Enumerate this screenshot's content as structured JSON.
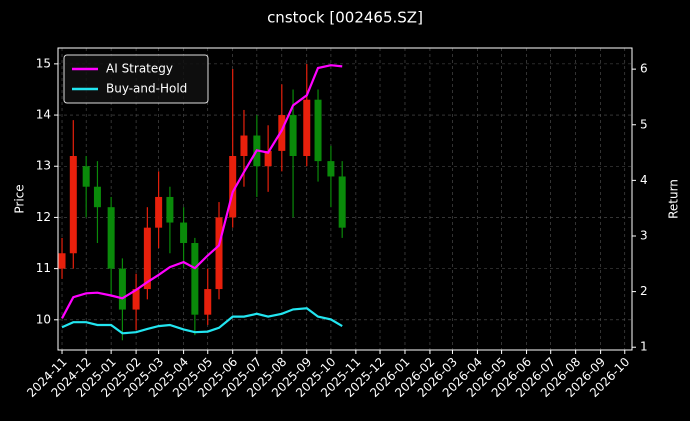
{
  "chart_data": {
    "type": "candlestick",
    "title": "cnstock [002465.SZ]",
    "ylabel": "Price",
    "y2label": "Return",
    "x": [
      "2024-11-01",
      "2024-11-15",
      "2024-12-01",
      "2024-12-15",
      "2025-01-01",
      "2025-01-15",
      "2025-02-01",
      "2025-02-15",
      "2025-03-01",
      "2025-03-15",
      "2025-04-01",
      "2025-04-15",
      "2025-05-01",
      "2025-05-15",
      "2025-06-01",
      "2025-06-15",
      "2025-07-01",
      "2025-07-15",
      "2025-08-01",
      "2025-08-15",
      "2025-09-01",
      "2025-09-15",
      "2025-10-01",
      "2025-10-15"
    ],
    "open": [
      11.0,
      11.3,
      13.0,
      12.6,
      12.2,
      11.0,
      10.2,
      10.6,
      11.8,
      12.4,
      11.9,
      11.5,
      10.1,
      10.6,
      12.0,
      13.2,
      13.6,
      13.0,
      13.3,
      14.0,
      13.2,
      14.3,
      13.1,
      12.8
    ],
    "high": [
      11.6,
      13.9,
      13.2,
      13.1,
      12.4,
      11.2,
      10.9,
      12.2,
      12.9,
      12.6,
      12.2,
      11.6,
      11.0,
      12.3,
      14.9,
      14.1,
      14.0,
      13.8,
      14.6,
      14.5,
      15.0,
      14.5,
      13.4,
      13.1
    ],
    "low": [
      10.8,
      11.0,
      12.0,
      11.5,
      10.5,
      9.6,
      9.8,
      10.4,
      11.4,
      11.3,
      11.0,
      9.7,
      9.9,
      10.4,
      11.8,
      12.6,
      12.4,
      12.5,
      12.9,
      12.0,
      13.0,
      12.7,
      12.2,
      11.6
    ],
    "close": [
      11.3,
      13.2,
      12.6,
      12.2,
      11.0,
      10.2,
      10.6,
      11.8,
      12.4,
      11.9,
      11.5,
      10.1,
      10.6,
      12.0,
      13.2,
      13.6,
      13.0,
      13.3,
      14.0,
      13.2,
      14.3,
      13.1,
      12.8,
      11.8
    ],
    "up_color": "#e8200c",
    "down_color": "#0a8a0a",
    "series": [
      {
        "name": "AI Strategy",
        "color": "#ff00ff",
        "axis": "y2",
        "values": [
          1.52,
          1.9,
          1.97,
          1.98,
          1.93,
          1.88,
          2.03,
          2.17,
          2.3,
          2.44,
          2.53,
          2.42,
          2.65,
          2.83,
          3.79,
          4.15,
          4.54,
          4.5,
          4.9,
          5.35,
          5.53,
          6.02,
          6.07,
          6.05
        ]
      },
      {
        "name": "Buy-and-Hold",
        "color": "#22e5f0",
        "axis": "y2",
        "values": [
          1.36,
          1.45,
          1.45,
          1.4,
          1.4,
          1.25,
          1.27,
          1.33,
          1.38,
          1.4,
          1.32,
          1.27,
          1.28,
          1.35,
          1.55,
          1.55,
          1.6,
          1.55,
          1.6,
          1.68,
          1.7,
          1.55,
          1.5,
          1.38
        ]
      }
    ],
    "xlim": [
      "2024-10-27",
      "2026-10-10"
    ],
    "xticks": [
      {
        "value": "2024-11-01",
        "label": "2024-11"
      },
      {
        "value": "2024-12-01",
        "label": "2024-12"
      },
      {
        "value": "2025-01-01",
        "label": "2025-01"
      },
      {
        "value": "2025-02-01",
        "label": "2025-02"
      },
      {
        "value": "2025-03-01",
        "label": "2025-03"
      },
      {
        "value": "2025-04-01",
        "label": "2025-04"
      },
      {
        "value": "2025-05-01",
        "label": "2025-05"
      },
      {
        "value": "2025-06-01",
        "label": "2025-06"
      },
      {
        "value": "2025-07-01",
        "label": "2025-07"
      },
      {
        "value": "2025-08-01",
        "label": "2025-08"
      },
      {
        "value": "2025-09-01",
        "label": "2025-09"
      },
      {
        "value": "2025-10-01",
        "label": "2025-10"
      },
      {
        "value": "2025-11-01",
        "label": "2025-11"
      },
      {
        "value": "2025-12-01",
        "label": "2025-12"
      },
      {
        "value": "2026-01-01",
        "label": "2026-01"
      },
      {
        "value": "2026-02-01",
        "label": "2026-02"
      },
      {
        "value": "2026-03-01",
        "label": "2026-03"
      },
      {
        "value": "2026-04-01",
        "label": "2026-04"
      },
      {
        "value": "2026-05-01",
        "label": "2026-05"
      },
      {
        "value": "2026-06-01",
        "label": "2026-06"
      },
      {
        "value": "2026-07-01",
        "label": "2026-07"
      },
      {
        "value": "2026-08-01",
        "label": "2026-08"
      },
      {
        "value": "2026-09-01",
        "label": "2026-09"
      },
      {
        "value": "2026-10-01",
        "label": "2026-10"
      }
    ],
    "ylim": [
      9.41,
      15.31
    ],
    "yticks": [
      10,
      11,
      12,
      13,
      14,
      15
    ],
    "y2lim": [
      0.95,
      6.38
    ],
    "y2ticks": [
      1,
      2,
      3,
      4,
      5,
      6
    ],
    "grid": true,
    "legend": "upper left"
  }
}
